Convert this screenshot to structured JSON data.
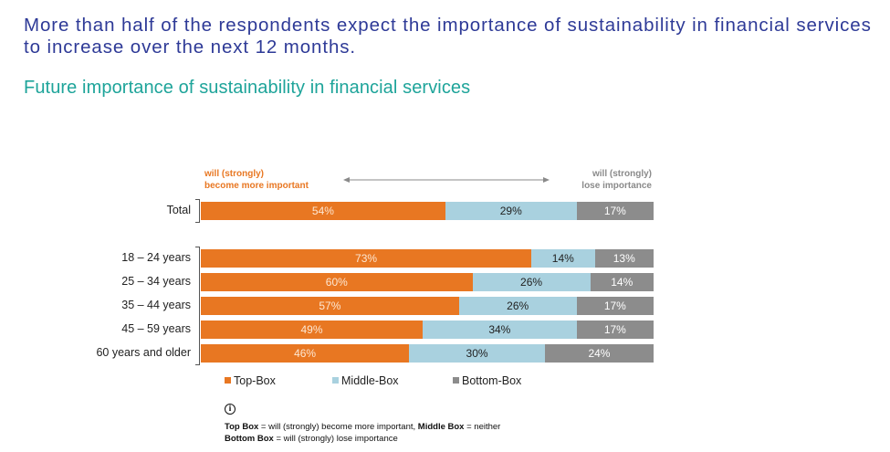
{
  "headline": "More than half of the respondents expect the importance of sustainability in financial services to increase over the next 12 months.",
  "subtitle": "Future importance of sustainability in financial services",
  "scale_header": {
    "left_line1": "will (strongly)",
    "left_line2": "become more important",
    "right_line1": "will (strongly)",
    "right_line2": "lose importance"
  },
  "colors": {
    "top_box": "#e87722",
    "middle_box": "#a9d1df",
    "bottom_box": "#8c8c8c",
    "headline": "#2e3a97",
    "subtitle": "#1ea49a"
  },
  "chart_data": {
    "type": "bar",
    "orientation": "horizontal",
    "stacked": true,
    "normalized_percent": true,
    "categories": [
      "Total",
      "18 – 24 years",
      "25 – 34 years",
      "35 – 44 years",
      "45 – 59 years",
      "60 years and older"
    ],
    "series": [
      {
        "name": "Top-Box",
        "values": [
          54,
          73,
          60,
          57,
          49,
          46
        ],
        "labels": [
          "54%",
          "73%",
          "60%",
          "57%",
          "49%",
          "46%"
        ]
      },
      {
        "name": "Middle-Box",
        "values": [
          29,
          14,
          26,
          26,
          34,
          30
        ],
        "labels": [
          "29%",
          "14%",
          "26%",
          "26%",
          "34%",
          "30%"
        ]
      },
      {
        "name": "Bottom-Box",
        "values": [
          17,
          13,
          14,
          17,
          17,
          24
        ],
        "labels": [
          "17%",
          "13%",
          "14%",
          "17%",
          "17%",
          "24%"
        ]
      }
    ],
    "xlim": [
      0,
      100
    ],
    "legend_position": "bottom"
  },
  "legend": {
    "top": "Top-Box",
    "middle": "Middle-Box",
    "bottom": "Bottom-Box"
  },
  "note": {
    "icon": "info-icon",
    "top_term": "Top Box",
    "top_def": " = will (strongly) become more important, ",
    "middle_term": "Middle Box",
    "middle_def": " = neither",
    "bottom_term": "Bottom Box",
    "bottom_def": " = will (strongly) lose importance"
  }
}
